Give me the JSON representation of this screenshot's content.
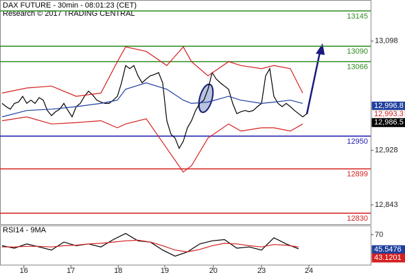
{
  "chart_data": [
    {
      "type": "line",
      "title": "DAX FUTURE - 30min - 08:01:23 (CET)",
      "subtitle": "Research © 2017 TRADING CENTRAL",
      "x": [
        0,
        1,
        2,
        3,
        4,
        5,
        6,
        7,
        8,
        9,
        10,
        11,
        12,
        13,
        14,
        15,
        16,
        17,
        18,
        19,
        20,
        21,
        22,
        23,
        24,
        25,
        26,
        27,
        28,
        29,
        30,
        31,
        32,
        33,
        34,
        35,
        36,
        37,
        38,
        39,
        40,
        41,
        42,
        43,
        44,
        45,
        46,
        47,
        48,
        49,
        50,
        51,
        52,
        53,
        54,
        55,
        56,
        57,
        58,
        59,
        60,
        61,
        62,
        63,
        64,
        65,
        66,
        67,
        68,
        69,
        70,
        71,
        72,
        73,
        74
      ],
      "xlim": [
        -0.5,
        89.5
      ],
      "ylim": [
        12813,
        13162
      ],
      "yticks": [
        {
          "value": 13098,
          "label": "13,098"
        },
        {
          "value": 12928,
          "label": "12,928"
        },
        {
          "value": 12843,
          "label": "12,843"
        }
      ],
      "series": [
        {
          "color": "#000000",
          "values": [
            13001,
            12996,
            12992,
            13001,
            13003,
            13012,
            13001,
            13006,
            13001,
            13010,
            13006,
            12990,
            12982,
            12988,
            12992,
            13001,
            12990,
            12980,
            12996,
            13001,
            13012,
            13020,
            13014,
            13006,
            13003,
            13001,
            13001,
            13006,
            13012,
            13033,
            13060,
            13055,
            13060,
            13044,
            13033,
            13039,
            13044,
            13046,
            13049,
            13033,
            12974,
            12953,
            12947,
            12931,
            12942,
            12963,
            12974,
            12990,
            13001,
            13006,
            13023,
            13049,
            13039,
            13033,
            13028,
            13023,
            13001,
            12985,
            12988,
            12990,
            12988,
            12990,
            12996,
            13001,
            13044,
            13055,
            13012,
            13001,
            12996,
            13001,
            12996,
            12990,
            12985,
            12980,
            12985
          ]
        },
        {
          "color": "#d42020",
          "x": [
            0,
            6,
            12,
            18,
            24,
            28,
            30,
            35,
            40,
            44,
            46,
            50,
            55,
            58,
            63,
            66,
            70,
            73
          ],
          "values": [
            13017,
            13025,
            13028,
            13012,
            13017,
            13066,
            13089,
            13082,
            13060,
            13089,
            13066,
            13044,
            13066,
            13060,
            13055,
            13060,
            13055,
            13017
          ]
        },
        {
          "color": "#d42020",
          "x": [
            0,
            6,
            12,
            18,
            24,
            28,
            30,
            35,
            40,
            44,
            46,
            50,
            55,
            58,
            63,
            66,
            70,
            73
          ],
          "values": [
            12974,
            12980,
            12969,
            12971,
            12974,
            12963,
            12969,
            12977,
            12931,
            12894,
            12904,
            12947,
            12969,
            12958,
            12963,
            12963,
            12958,
            12969
          ]
        },
        {
          "color": "#1f3f9f",
          "x": [
            0,
            6,
            12,
            18,
            24,
            28,
            30,
            35,
            40,
            44,
            46,
            50,
            55,
            58,
            63,
            66,
            70,
            73
          ],
          "values": [
            12980,
            12990,
            12992,
            12996,
            13001,
            13006,
            13023,
            13033,
            13023,
            13006,
            13001,
            13003,
            13012,
            13006,
            13001,
            13003,
            13006,
            13001
          ]
        }
      ],
      "levels": [
        {
          "value": 13145,
          "color": "#2e8b22"
        },
        {
          "value": 13090,
          "color": "#2e8b22"
        },
        {
          "value": 13066,
          "color": "#2e8b22"
        },
        {
          "value": 12950,
          "color": "#1a1ab0"
        },
        {
          "value": 12899,
          "color": "#d42020"
        },
        {
          "value": 12830,
          "color": "#d42020"
        }
      ],
      "tags": [
        {
          "value": 12996.8,
          "label": "12,996.8",
          "color": "#1f3f9f",
          "text_color": "#ffffff"
        },
        {
          "value": 12993.3,
          "label": "12,993.3",
          "color": "#ffffff",
          "text_color": "#d42020"
        },
        {
          "value": 12986.5,
          "label": "12,986.5",
          "color": "#000000",
          "text_color": "#ffffff"
        }
      ]
    },
    {
      "type": "line",
      "title": "RSI14 - 9MA",
      "xlim": [
        -0.5,
        89.5
      ],
      "ylim": [
        20,
        85
      ],
      "yticks": [
        70
      ],
      "xticks": [
        {
          "value": 5.3,
          "label": "16"
        },
        {
          "value": 16.7,
          "label": "17"
        },
        {
          "value": 28.2,
          "label": "18"
        },
        {
          "value": 39.5,
          "label": "19"
        },
        {
          "value": 51.3,
          "label": "20"
        },
        {
          "value": 63,
          "label": "23"
        },
        {
          "value": 74.5,
          "label": "24"
        }
      ],
      "series": [
        {
          "color": "#000000",
          "x": [
            0,
            3,
            6,
            9,
            12,
            15,
            18,
            21,
            24,
            27,
            30,
            33,
            36,
            39,
            42,
            45,
            48,
            51,
            54,
            57,
            60,
            63,
            66,
            69,
            72
          ],
          "values": [
            52,
            48,
            55,
            50,
            45,
            58,
            52,
            55,
            50,
            62,
            72,
            60,
            58,
            45,
            35,
            42,
            55,
            60,
            62,
            48,
            50,
            45,
            65,
            55,
            47
          ]
        },
        {
          "color": "#d42020",
          "x": [
            0,
            3,
            6,
            9,
            12,
            15,
            18,
            21,
            24,
            27,
            30,
            33,
            36,
            39,
            42,
            45,
            48,
            51,
            54,
            57,
            60,
            63,
            66,
            69,
            72
          ],
          "values": [
            50,
            50,
            51,
            51,
            50,
            52,
            53,
            55,
            56,
            58,
            60,
            61,
            58,
            52,
            45,
            42,
            46,
            52,
            56,
            55,
            52,
            50,
            54,
            53,
            50
          ]
        }
      ],
      "tags": [
        {
          "value": 45.5476,
          "label": "45.5476",
          "color": "#1f3f9f",
          "text_color": "#ffffff"
        },
        {
          "value": 43.1201,
          "label": "43.1201",
          "color": "#d42020",
          "text_color": "#ffffff"
        }
      ]
    }
  ]
}
